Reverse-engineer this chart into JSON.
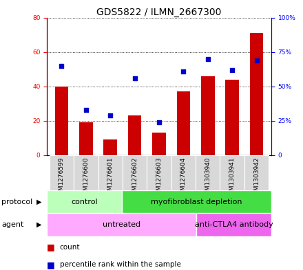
{
  "title": "GDS5822 / ILMN_2667300",
  "samples": [
    "GSM1276599",
    "GSM1276600",
    "GSM1276601",
    "GSM1276602",
    "GSM1276603",
    "GSM1276604",
    "GSM1303940",
    "GSM1303941",
    "GSM1303942"
  ],
  "counts": [
    40,
    19,
    9,
    23,
    13,
    37,
    46,
    44,
    71
  ],
  "percentiles": [
    65,
    33,
    29,
    56,
    24,
    61,
    70,
    62,
    69
  ],
  "bar_color": "#cc0000",
  "dot_color": "#0000cc",
  "left_ylim": [
    0,
    80
  ],
  "right_ylim": [
    0,
    100
  ],
  "left_yticks": [
    0,
    20,
    40,
    60,
    80
  ],
  "right_yticks": [
    0,
    25,
    50,
    75,
    100
  ],
  "right_yticklabels": [
    "0",
    "25%",
    "50%",
    "75%",
    "100%"
  ],
  "protocol_groups": [
    {
      "label": "control",
      "start": 0,
      "end": 3,
      "color": "#bbffbb"
    },
    {
      "label": "myofibroblast depletion",
      "start": 3,
      "end": 9,
      "color": "#44dd44"
    }
  ],
  "agent_groups": [
    {
      "label": "untreated",
      "start": 0,
      "end": 6,
      "color": "#ffaaff"
    },
    {
      "label": "anti-CTLA4 antibody",
      "start": 6,
      "end": 9,
      "color": "#ee66ee"
    }
  ],
  "legend_count_label": "count",
  "legend_pct_label": "percentile rank within the sample",
  "xlabel_protocol": "protocol",
  "xlabel_agent": "agent",
  "title_fontsize": 10,
  "tick_fontsize": 6.5,
  "label_fontsize": 8,
  "annot_fontsize": 8,
  "legend_fontsize": 7.5
}
